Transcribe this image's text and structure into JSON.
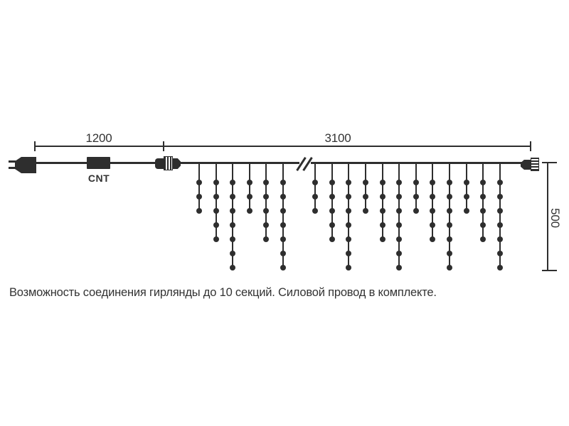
{
  "diagram": {
    "labels": {
      "lead_length": "1200",
      "garland_length": "3100",
      "drop_height": "500",
      "controller": "CNT"
    },
    "note": "Возможность соединения гирлянды до 10 секций. Силовой провод в комплекте.",
    "colors": {
      "line": "#2e2e2e",
      "text": "#333333",
      "background": "#ffffff"
    },
    "drops": {
      "count": 18,
      "dot_counts": [
        3,
        5,
        7,
        3,
        5,
        7,
        3,
        5,
        7,
        3,
        5,
        7,
        3,
        5,
        7,
        3,
        5,
        7
      ]
    }
  }
}
